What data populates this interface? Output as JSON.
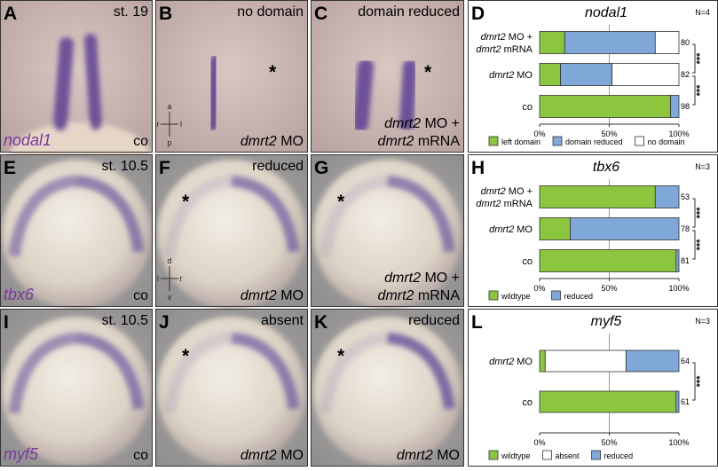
{
  "figure": {
    "panels": [
      {
        "letter": "A",
        "top_label": "st. 19",
        "bottom_label": [
          "co"
        ],
        "gene": "nodal1"
      },
      {
        "letter": "B",
        "top_label": "no domain",
        "bottom_label": [
          "dmrt2 MO"
        ],
        "star": "*",
        "axis": {
          "up": "a",
          "down": "p",
          "left": "r",
          "right": "l"
        }
      },
      {
        "letter": "C",
        "top_label": "domain reduced",
        "bottom_label": [
          "dmrt2 MO +",
          "dmrt2 mRNA"
        ],
        "star": "*"
      },
      {
        "letter": "E",
        "top_label": "st. 10.5",
        "bottom_label": [
          "co"
        ],
        "gene": "tbx6"
      },
      {
        "letter": "F",
        "top_label": "reduced",
        "bottom_label": [
          "dmrt2 MO"
        ],
        "star": "*",
        "axis": {
          "up": "d",
          "down": "v",
          "left": "l",
          "right": "r"
        }
      },
      {
        "letter": "G",
        "bottom_label": [
          "dmrt2 MO +",
          "dmrt2 mRNA"
        ],
        "star": "*"
      },
      {
        "letter": "I",
        "top_label": "st. 10.5",
        "bottom_label": [
          "co"
        ],
        "gene": "myf5"
      },
      {
        "letter": "J",
        "top_label": "absent",
        "bottom_label": [
          "dmrt2 MO"
        ],
        "star": "*"
      },
      {
        "letter": "K",
        "top_label": "reduced",
        "bottom_label": [
          "dmrt2 MO"
        ],
        "star": "*"
      }
    ]
  },
  "chart_data": [
    {
      "type": "bar",
      "orientation": "horizontal",
      "stacked": true,
      "letter": "D",
      "title": "nodal1",
      "n_label": "N=4",
      "categories": [
        [
          "dmrt2 MO +",
          "dmrt2 mRNA"
        ],
        [
          "dmrt2 MO"
        ],
        [
          "co"
        ]
      ],
      "series": [
        {
          "name": "left domain",
          "color": "#8cc63f",
          "values": [
            18,
            15,
            94
          ]
        },
        {
          "name": "domain reduced",
          "color": "#7fa7d8",
          "values": [
            65,
            37,
            6
          ]
        },
        {
          "name": "no domain",
          "color": "#ffffff",
          "values": [
            17,
            48,
            0
          ]
        }
      ],
      "sample_sizes": [
        80,
        82,
        98
      ],
      "significance": [
        "***",
        "***"
      ],
      "xlim": [
        0,
        100
      ],
      "xticks": [
        {
          "value": 0,
          "label": "0%"
        },
        {
          "value": 50,
          "label": "50%"
        },
        {
          "value": 100,
          "label": "100%"
        }
      ]
    },
    {
      "type": "bar",
      "orientation": "horizontal",
      "stacked": true,
      "letter": "H",
      "title": "tbx6",
      "n_label": "N=3",
      "categories": [
        [
          "dmrt2 MO +",
          "dmrt2 mRNA"
        ],
        [
          "dmrt2 MO"
        ],
        [
          "co"
        ]
      ],
      "series": [
        {
          "name": "wildtype",
          "color": "#8cc63f",
          "values": [
            83,
            22,
            98
          ]
        },
        {
          "name": "reduced",
          "color": "#7fa7d8",
          "values": [
            17,
            78,
            2
          ]
        }
      ],
      "sample_sizes": [
        53,
        78,
        81
      ],
      "significance": [
        "***",
        "***"
      ],
      "xlim": [
        0,
        100
      ],
      "xticks": [
        {
          "value": 0,
          "label": "0%"
        },
        {
          "value": 50,
          "label": "50%"
        },
        {
          "value": 100,
          "label": "100%"
        }
      ]
    },
    {
      "type": "bar",
      "orientation": "horizontal",
      "stacked": true,
      "letter": "L",
      "title": "myf5",
      "n_label": "N=3",
      "categories": [
        [
          "dmrt2 MO"
        ],
        [
          "co"
        ]
      ],
      "series": [
        {
          "name": "wildtype",
          "color": "#8cc63f",
          "values": [
            4,
            98
          ]
        },
        {
          "name": "absent",
          "color": "#ffffff",
          "values": [
            58,
            0
          ]
        },
        {
          "name": "reduced",
          "color": "#7fa7d8",
          "values": [
            38,
            2
          ]
        }
      ],
      "sample_sizes": [
        64,
        61
      ],
      "significance": [
        "***"
      ],
      "xlim": [
        0,
        100
      ],
      "xticks": [
        {
          "value": 0,
          "label": "0%"
        },
        {
          "value": 50,
          "label": "50%"
        },
        {
          "value": 100,
          "label": "100%"
        }
      ]
    }
  ]
}
